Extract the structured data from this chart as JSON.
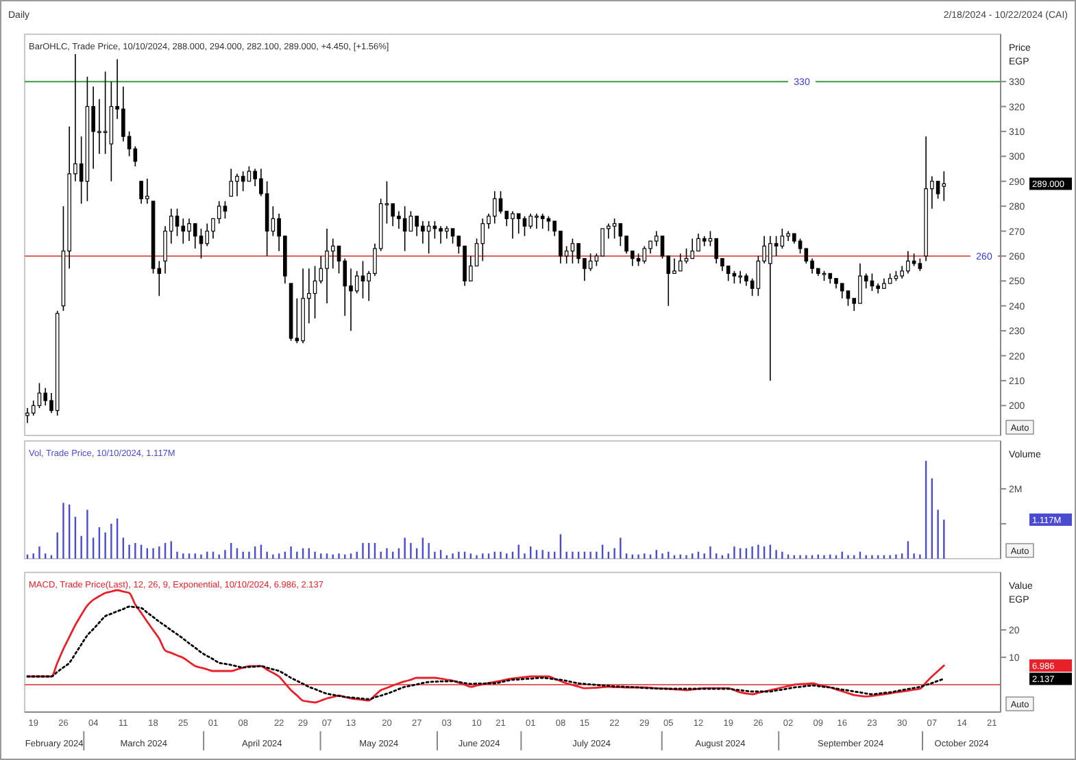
{
  "chart_data": [
    {
      "type": "candlestick",
      "title": "Daily",
      "subtitle": "BarOHLC, Trade Price, 10/10/2024, 288.000, 294.000, 282.100, 289.000, +4.450, [+1.56%]",
      "ylabel": "Price EGP",
      "color": "#000000",
      "tick_labels": "y",
      "categories": [
        null,
        "19",
        null,
        null,
        null,
        null,
        "26",
        null,
        null,
        null,
        null,
        "04",
        null,
        null,
        null,
        null,
        "11",
        null,
        null,
        null,
        null,
        "18",
        null,
        null,
        null,
        null,
        "25",
        null,
        null,
        null,
        null,
        "01",
        null,
        null,
        null,
        null,
        "08",
        null,
        null,
        null,
        null,
        null,
        "22",
        null,
        null,
        null,
        "29",
        null,
        null,
        null,
        "07",
        null,
        null,
        null,
        "13",
        null,
        null,
        null,
        null,
        null,
        "20",
        null,
        null,
        null,
        null,
        "27",
        null,
        null,
        null,
        null,
        "03",
        null,
        null,
        null,
        null,
        "10",
        null,
        null,
        null,
        "21",
        null,
        null,
        null,
        null,
        "01",
        null,
        null,
        null,
        null,
        "08",
        null,
        null,
        null,
        "15",
        null,
        null,
        null,
        null,
        "22",
        null,
        null,
        null,
        null,
        "29",
        null,
        null,
        null,
        "05",
        null,
        null,
        null,
        null,
        "12",
        null,
        null,
        null,
        null,
        "19",
        null,
        null,
        null,
        null,
        "26",
        null,
        null,
        null,
        null,
        "02",
        null,
        null,
        null,
        null,
        "09",
        null,
        null,
        null,
        "16",
        null,
        null,
        null,
        null,
        "23",
        null,
        null,
        null,
        null,
        "30",
        null,
        null,
        null,
        null,
        "07",
        null,
        null,
        null,
        null,
        "14",
        null,
        null,
        null,
        null,
        "21"
      ],
      "ohlc": [
        [
          196,
          199,
          193,
          197
        ],
        [
          197,
          202,
          196,
          200
        ],
        [
          200,
          209,
          199,
          205
        ],
        [
          205,
          207,
          200,
          202
        ],
        [
          202,
          205,
          197,
          198
        ],
        [
          198,
          238,
          196,
          237
        ],
        [
          240,
          280,
          238,
          262
        ],
        [
          262,
          312,
          255,
          293
        ],
        [
          293,
          341,
          290,
          297
        ],
        [
          297,
          308,
          281,
          290
        ],
        [
          290,
          332,
          282,
          320
        ],
        [
          320,
          328,
          295,
          310
        ],
        [
          310,
          323,
          301,
          310
        ],
        [
          310,
          334,
          301,
          310
        ],
        [
          305,
          330,
          290,
          320
        ],
        [
          320,
          339,
          315,
          319
        ],
        [
          319,
          328,
          306,
          308
        ],
        [
          308,
          310,
          300,
          303
        ],
        [
          303,
          304,
          296,
          298
        ],
        [
          290,
          290,
          281,
          283
        ],
        [
          283,
          291,
          281,
          284
        ],
        [
          282,
          282,
          253,
          255
        ],
        [
          255,
          258,
          244,
          253
        ],
        [
          258,
          272,
          253,
          270
        ],
        [
          270,
          279,
          265,
          276
        ],
        [
          276,
          279,
          268,
          272
        ],
        [
          272,
          275,
          265,
          270
        ],
        [
          270,
          275,
          266,
          273
        ],
        [
          273,
          273,
          263,
          268
        ],
        [
          268,
          271,
          259,
          265
        ],
        [
          265,
          273,
          264,
          270
        ],
        [
          270,
          275,
          267,
          275
        ],
        [
          275,
          282,
          273,
          280
        ],
        [
          280,
          282,
          275,
          278
        ],
        [
          284,
          295,
          284,
          290
        ],
        [
          290,
          293,
          284,
          292
        ],
        [
          292,
          294,
          286,
          290
        ],
        [
          290,
          296,
          290,
          294
        ],
        [
          294,
          295,
          288,
          291
        ],
        [
          291,
          295,
          284,
          285
        ],
        [
          285,
          290,
          260,
          270
        ],
        [
          270,
          280,
          268,
          275
        ],
        [
          275,
          277,
          262,
          268
        ],
        [
          268,
          268,
          249,
          252
        ],
        [
          249,
          249,
          226,
          227
        ],
        [
          227,
          243,
          225,
          226
        ],
        [
          226,
          255,
          225,
          243
        ],
        [
          243,
          255,
          233,
          245
        ],
        [
          245,
          256,
          235,
          250
        ],
        [
          250,
          260,
          249,
          255
        ],
        [
          255,
          271,
          241,
          262
        ],
        [
          262,
          267,
          255,
          264
        ],
        [
          264,
          264,
          253,
          258
        ],
        [
          258,
          259,
          236,
          248
        ],
        [
          248,
          255,
          230,
          246
        ],
        [
          246,
          254,
          245,
          252
        ],
        [
          252,
          258,
          243,
          250
        ],
        [
          250,
          254,
          242,
          253
        ],
        [
          253,
          265,
          252,
          263
        ],
        [
          263,
          283,
          262,
          281
        ],
        [
          281,
          290,
          273,
          281
        ],
        [
          281,
          281,
          272,
          276
        ],
        [
          276,
          278,
          271,
          275
        ],
        [
          275,
          280,
          262,
          270
        ],
        [
          270,
          278,
          270,
          276
        ],
        [
          276,
          276,
          268,
          272
        ],
        [
          272,
          274,
          265,
          270
        ],
        [
          270,
          274,
          261,
          272
        ],
        [
          272,
          274,
          267,
          271
        ],
        [
          271,
          272,
          265,
          270
        ],
        [
          270,
          272,
          267,
          271
        ],
        [
          271,
          271,
          265,
          268
        ],
        [
          268,
          268,
          261,
          264
        ],
        [
          264,
          264,
          248,
          250
        ],
        [
          250,
          260,
          250,
          256
        ],
        [
          256,
          267,
          256,
          265
        ],
        [
          265,
          275,
          258,
          273
        ],
        [
          273,
          277,
          271,
          276
        ],
        [
          276,
          286,
          273,
          283
        ],
        [
          283,
          286,
          277,
          278
        ],
        [
          278,
          278,
          272,
          275
        ],
        [
          275,
          278,
          267,
          277
        ],
        [
          277,
          277,
          269,
          275
        ],
        [
          275,
          276,
          268,
          272
        ],
        [
          272,
          277,
          271,
          276
        ],
        [
          276,
          277,
          271,
          276
        ],
        [
          276,
          277,
          271,
          275
        ],
        [
          275,
          276,
          270,
          274
        ],
        [
          274,
          274,
          268,
          270
        ],
        [
          270,
          270,
          257,
          260
        ],
        [
          260,
          264,
          257,
          262
        ],
        [
          262,
          267,
          257,
          265
        ],
        [
          265,
          265,
          257,
          259
        ],
        [
          259,
          259,
          250,
          255
        ],
        [
          255,
          261,
          254,
          258
        ],
        [
          258,
          261,
          256,
          260
        ],
        [
          260,
          271,
          260,
          271
        ],
        [
          271,
          273,
          267,
          272
        ],
        [
          272,
          275,
          267,
          273
        ],
        [
          273,
          273,
          264,
          268
        ],
        [
          268,
          268,
          261,
          262
        ],
        [
          262,
          262,
          256,
          259
        ],
        [
          259,
          261,
          256,
          258
        ],
        [
          258,
          264,
          257,
          263
        ],
        [
          263,
          266,
          261,
          266
        ],
        [
          266,
          270,
          264,
          268
        ],
        [
          268,
          268,
          259,
          260
        ],
        [
          260,
          260,
          240,
          253
        ],
        [
          253,
          259,
          253,
          254
        ],
        [
          254,
          261,
          254,
          258
        ],
        [
          258,
          263,
          257,
          259
        ],
        [
          259,
          267,
          259,
          262
        ],
        [
          262,
          269,
          262,
          267
        ],
        [
          267,
          268,
          264,
          266
        ],
        [
          266,
          270,
          264,
          267
        ],
        [
          267,
          267,
          257,
          259
        ],
        [
          259,
          259,
          254,
          256
        ],
        [
          256,
          256,
          250,
          253
        ],
        [
          253,
          254,
          249,
          252
        ],
        [
          252,
          254,
          249,
          252
        ],
        [
          252,
          253,
          248,
          250
        ],
        [
          250,
          251,
          244,
          247
        ],
        [
          247,
          260,
          244,
          258
        ],
        [
          258,
          268,
          257,
          264
        ],
        [
          257,
          268,
          210,
          265
        ],
        [
          265,
          268,
          260,
          264
        ],
        [
          264,
          271,
          263,
          268
        ],
        [
          268,
          270,
          266,
          269
        ],
        [
          269,
          269,
          265,
          266
        ],
        [
          266,
          267,
          261,
          263
        ],
        [
          263,
          263,
          257,
          258
        ],
        [
          258,
          259,
          253,
          255
        ],
        [
          255,
          255,
          252,
          253
        ],
        [
          253,
          254,
          250,
          253
        ],
        [
          253,
          253,
          249,
          251
        ],
        [
          251,
          251,
          247,
          249
        ],
        [
          249,
          249,
          243,
          246
        ],
        [
          246,
          246,
          240,
          243
        ],
        [
          243,
          243,
          238,
          241
        ],
        [
          241,
          257,
          241,
          252
        ],
        [
          252,
          253,
          247,
          250
        ],
        [
          250,
          253,
          246,
          248
        ],
        [
          248,
          249,
          245,
          247
        ],
        [
          247,
          251,
          247,
          249
        ],
        [
          249,
          253,
          249,
          251
        ],
        [
          251,
          254,
          250,
          252
        ],
        [
          252,
          256,
          251,
          254
        ],
        [
          254,
          262,
          253,
          258
        ],
        [
          258,
          261,
          256,
          257
        ],
        [
          257,
          259,
          254,
          255
        ],
        [
          260,
          308,
          258,
          287
        ],
        [
          287,
          292,
          279,
          290
        ],
        [
          290,
          290,
          283,
          285
        ],
        [
          288,
          294,
          282.1,
          289
        ],
        null,
        null,
        null,
        null,
        null,
        null,
        null,
        null
      ],
      "ylim": [
        188,
        349
      ],
      "yticks": [
        200,
        210,
        220,
        230,
        240,
        250,
        260,
        270,
        280,
        290,
        300,
        310,
        320,
        330
      ],
      "ref_lines": [
        {
          "axis": "y",
          "value": 330,
          "label": "330",
          "color": "#3c9a3c"
        },
        {
          "axis": "y",
          "value": 260,
          "label": "260",
          "color": "#e06060"
        }
      ],
      "annotations": [
        "Auto",
        "2/18/2024 - 10/22/2024 (CAI)",
        "289.000"
      ]
    },
    {
      "type": "bar",
      "subtitle": "Vol, Trade Price, 10/10/2024, 1.117M",
      "ylabel": "Volume",
      "color": "#4b4bd0",
      "tick_labels": "y",
      "categories": [
        null,
        "19",
        null,
        null,
        null,
        null,
        "26",
        null,
        null,
        null,
        null,
        "04",
        null,
        null,
        null,
        null,
        "11",
        null,
        null,
        null,
        null,
        "18",
        null,
        null,
        null,
        null,
        "25",
        null,
        null,
        null,
        null,
        "01",
        null,
        null,
        null,
        null,
        "08",
        null,
        null,
        null,
        null,
        null,
        "22",
        null,
        null,
        null,
        "29",
        null,
        null,
        null,
        "07",
        null,
        null,
        null,
        "13",
        null,
        null,
        null,
        null,
        null,
        "20",
        null,
        null,
        null,
        null,
        "27",
        null,
        null,
        null,
        null,
        "03",
        null,
        null,
        null,
        null,
        "10",
        null,
        null,
        null,
        "21",
        null,
        null,
        null,
        null,
        "01",
        null,
        null,
        null,
        null,
        "08",
        null,
        null,
        null,
        "15",
        null,
        null,
        null,
        null,
        "22",
        null,
        null,
        null,
        null,
        "29",
        null,
        null,
        null,
        "05",
        null,
        null,
        null,
        null,
        "12",
        null,
        null,
        null,
        null,
        "19",
        null,
        null,
        null,
        null,
        "26",
        null,
        null,
        null,
        null,
        "02",
        null,
        null,
        null,
        null,
        "09",
        null,
        null,
        null,
        "16",
        null,
        null,
        null,
        null,
        "23",
        null,
        null,
        null,
        null,
        "30",
        null,
        null,
        null,
        null,
        "07",
        null,
        null,
        null,
        null,
        "14",
        null,
        null,
        null,
        null,
        "21"
      ],
      "values": [
        0.12,
        0.15,
        0.35,
        0.15,
        0.1,
        0.75,
        1.6,
        1.55,
        1.2,
        0.65,
        1.4,
        0.6,
        0.9,
        0.75,
        1.0,
        1.15,
        0.6,
        0.4,
        0.45,
        0.4,
        0.3,
        0.3,
        0.35,
        0.45,
        0.5,
        0.2,
        0.15,
        0.15,
        0.15,
        0.12,
        0.2,
        0.2,
        0.12,
        0.25,
        0.45,
        0.3,
        0.2,
        0.2,
        0.35,
        0.4,
        0.2,
        0.12,
        0.15,
        0.2,
        0.35,
        0.2,
        0.3,
        0.3,
        0.2,
        0.15,
        0.15,
        0.12,
        0.15,
        0.12,
        0.15,
        0.2,
        0.45,
        0.45,
        0.45,
        0.2,
        0.3,
        0.2,
        0.3,
        0.6,
        0.45,
        0.3,
        0.6,
        0.45,
        0.2,
        0.25,
        0.1,
        0.15,
        0.2,
        0.2,
        0.15,
        0.1,
        0.15,
        0.15,
        0.2,
        0.2,
        0.15,
        0.2,
        0.4,
        0.15,
        0.35,
        0.25,
        0.25,
        0.2,
        0.2,
        0.7,
        0.2,
        0.2,
        0.2,
        0.2,
        0.2,
        0.2,
        0.4,
        0.2,
        0.3,
        0.6,
        0.15,
        0.12,
        0.12,
        0.15,
        0.12,
        0.25,
        0.15,
        0.2,
        0.1,
        0.12,
        0.1,
        0.15,
        0.2,
        0.15,
        0.35,
        0.15,
        0.1,
        0.15,
        0.35,
        0.3,
        0.3,
        0.35,
        0.4,
        0.35,
        0.4,
        0.25,
        0.2,
        0.12,
        0.1,
        0.1,
        0.1,
        0.1,
        0.12,
        0.1,
        0.12,
        0.1,
        0.2,
        0.1,
        0.1,
        0.2,
        0.1,
        0.1,
        0.1,
        0.1,
        0.1,
        0.12,
        0.15,
        0.5,
        0.15,
        0.12,
        2.8,
        2.3,
        1.4,
        1.117,
        null,
        null,
        null,
        null,
        null,
        null,
        null,
        null
      ],
      "ylim": [
        0,
        3.37
      ],
      "yticks": [
        {
          "value": 1,
          "label": null
        },
        {
          "value": 2,
          "label": "2M"
        }
      ],
      "annotations": [
        "Auto",
        "1.117M"
      ]
    },
    {
      "type": "line",
      "subtitle": "MACD, Trade Price(Last), 12, 26, 9, Exponential, 10/10/2024, 6.986, 2.137",
      "ylabel": "Value EGP",
      "categories": [
        null,
        "19",
        null,
        null,
        null,
        null,
        "26",
        null,
        null,
        null,
        null,
        "04",
        null,
        null,
        null,
        null,
        "11",
        null,
        null,
        null,
        null,
        "18",
        null,
        null,
        null,
        null,
        "25",
        null,
        null,
        null,
        null,
        "01",
        null,
        null,
        null,
        null,
        "08",
        null,
        null,
        null,
        null,
        null,
        "22",
        null,
        null,
        null,
        "29",
        null,
        null,
        null,
        "07",
        null,
        null,
        null,
        "13",
        null,
        null,
        null,
        null,
        null,
        "20",
        null,
        null,
        null,
        null,
        "27",
        null,
        null,
        null,
        null,
        "03",
        null,
        null,
        null,
        null,
        "10",
        null,
        null,
        null,
        "21",
        null,
        null,
        null,
        null,
        "01",
        null,
        null,
        null,
        null,
        "08",
        null,
        null,
        null,
        "15",
        null,
        null,
        null,
        null,
        "22",
        null,
        null,
        null,
        null,
        "29",
        null,
        null,
        null,
        "05",
        null,
        null,
        null,
        null,
        "12",
        null,
        null,
        null,
        null,
        "19",
        null,
        null,
        null,
        null,
        "26",
        null,
        null,
        null,
        null,
        "02",
        null,
        null,
        null,
        null,
        "09",
        null,
        null,
        null,
        "16",
        null,
        null,
        null,
        null,
        "23",
        null,
        null,
        null,
        null,
        "30",
        null,
        null,
        null,
        null,
        "07",
        null,
        null,
        null,
        null,
        "14",
        null,
        null,
        null,
        null,
        "21"
      ],
      "series": [
        {
          "color": "#e8202a",
          "line_style": "solid",
          "values": [
            3,
            3,
            3,
            3,
            3,
            8,
            13,
            17.4,
            21.8,
            25.5,
            28.9,
            31,
            32.3,
            33.5,
            34,
            34.5,
            34,
            33.5,
            29.3,
            26.2,
            23,
            19.9,
            16.8,
            12.5,
            11.6,
            10.7,
            9.8,
            8.3,
            6.8,
            6.2,
            5.6,
            5,
            5,
            5,
            5,
            5.6,
            6.2,
            6.8,
            6.8,
            6.8,
            5.5,
            4.3,
            3,
            0.5,
            -2,
            -3.9,
            -5.8,
            -6.2,
            -6.5,
            -5.8,
            -5,
            -4.5,
            -4,
            -4.5,
            -5,
            -5.3,
            -5.5,
            -5.8,
            -3.9,
            -2,
            -1.2,
            -0.3,
            0.5,
            1.2,
            1.8,
            2.5,
            2.5,
            2.5,
            2.5,
            2.2,
            1.8,
            1.5,
            0.7,
            0,
            -0.8,
            -0.3,
            0.1,
            0.6,
            1,
            1.4,
            1.9,
            2.3,
            2.5,
            2.8,
            3,
            3,
            3,
            3,
            2.2,
            1.3,
            0.5,
            -0.1,
            -0.7,
            -1.3,
            -1.2,
            -1.1,
            -0.9,
            -0.8,
            -0.9,
            -0.9,
            -1,
            -1,
            -1,
            -1,
            -1.1,
            -1.3,
            -1.4,
            -1.5,
            -1.7,
            -1.8,
            -2,
            -1.8,
            -1.5,
            -1.3,
            -1.3,
            -1.3,
            -1.3,
            -1.3,
            -2,
            -2.8,
            -3.2,
            -3.5,
            -3,
            -2.5,
            -2,
            -1.5,
            -1,
            -0.5,
            0,
            0.2,
            0.3,
            0.5,
            0,
            -0.5,
            -1,
            -1.7,
            -2.4,
            -3.1,
            -3.8,
            -4.1,
            -4.3,
            -4.1,
            -3.8,
            -3.5,
            -3.2,
            -2.8,
            -2.5,
            -2.2,
            -1.8,
            -1.5,
            0.8,
            3,
            5,
            6.986,
            null,
            null,
            null,
            null,
            null,
            null,
            null,
            null
          ]
        },
        {
          "color": "#000000",
          "line_style": "dotted",
          "values": [
            3,
            3,
            3,
            3,
            3,
            4.7,
            6.3,
            8,
            11.3,
            14.7,
            18,
            20.3,
            22.7,
            25,
            25.9,
            26.8,
            27.6,
            28.5,
            28.3,
            28,
            26.3,
            24.7,
            23,
            21.5,
            19.9,
            18.4,
            16.8,
            15.1,
            13.5,
            11.8,
            10.5,
            9.3,
            8,
            7.6,
            7.2,
            6.7,
            6.3,
            6.5,
            6.6,
            6.8,
            6.2,
            5.6,
            5,
            3.8,
            2.5,
            1.4,
            0.3,
            -0.8,
            -1.6,
            -2.5,
            -3.3,
            -3.7,
            -4.1,
            -4.5,
            -4.7,
            -4.9,
            -5.1,
            -5.3,
            -4.6,
            -4,
            -3.3,
            -2.5,
            -1.6,
            -0.8,
            -0.4,
            0.1,
            0.6,
            1,
            1.1,
            1.2,
            1.2,
            1.3,
            1,
            0.6,
            0.3,
            0.4,
            0.4,
            0.5,
            0.5,
            0.9,
            1.4,
            1.8,
            1.9,
            2.1,
            2.2,
            2.4,
            2.5,
            2.3,
            2,
            1.8,
            1.4,
            0.9,
            0.5,
            0.3,
            0.1,
            -0.1,
            -0.3,
            -0.4,
            -0.6,
            -0.7,
            -0.8,
            -0.9,
            -1,
            -1.2,
            -1.3,
            -1.4,
            -1.5,
            -1.5,
            -1.5,
            -1.5,
            -1.5,
            -1.5,
            -1.5,
            -1.5,
            -1.5,
            -1.5,
            -1.5,
            -1.5,
            -1.8,
            -2,
            -2.3,
            -2.5,
            -2.5,
            -2.5,
            -2.5,
            -2.1,
            -1.8,
            -1.4,
            -1,
            -0.8,
            -0.5,
            -0.3,
            -0.5,
            -0.8,
            -1,
            -1.4,
            -1.8,
            -2.1,
            -2.5,
            -2.8,
            -3.2,
            -3.5,
            -3.3,
            -3,
            -2.8,
            -2.4,
            -2,
            -1.6,
            -1.2,
            -0.8,
            -0.1,
            0.6,
            1.4,
            2.137,
            null,
            null,
            null,
            null,
            null,
            null,
            null,
            null
          ]
        }
      ],
      "ylim": [
        -10,
        41
      ],
      "yticks": [
        10,
        20
      ],
      "ref_lines": [
        {
          "axis": "y",
          "value": 0,
          "color": "#e06060"
        }
      ],
      "annotations": [
        "Auto",
        "February 2024",
        "March 2024",
        "April 2024",
        "May 2024",
        "June 2024",
        "July 2024",
        "August 2024",
        "September 2024",
        "October 2024",
        "6.986",
        "2.137"
      ]
    }
  ]
}
